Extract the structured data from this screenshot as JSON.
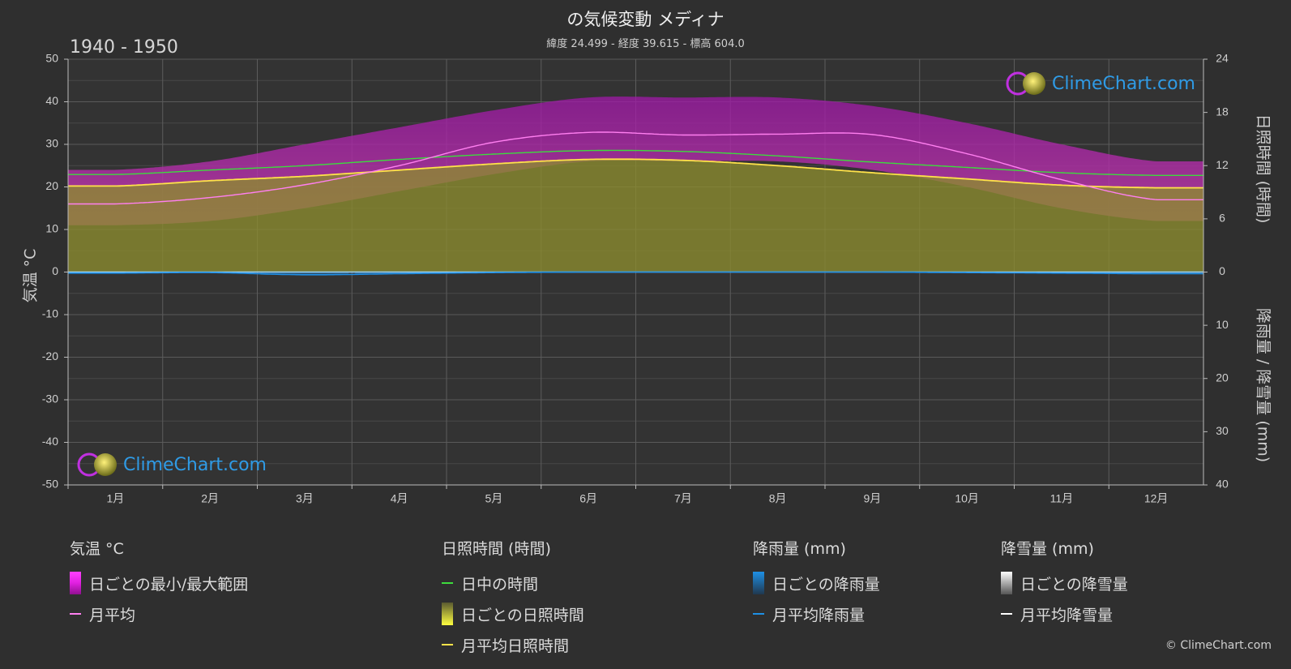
{
  "title": "の気候変動 メディナ",
  "subtitle": "緯度 24.499 - 経度 39.615 - 標高 604.0",
  "period": "1940 - 1950",
  "logo_text": "ClimeChart.com",
  "copyright": "© ClimeChart.com",
  "colors": {
    "background": "#2f2f2f",
    "temp_range": "#d020d0",
    "temp_avg": "#ff7ff0",
    "daylight": "#3ddc3d",
    "sunshine_fill": "#8c8c2e",
    "sunshine_avg": "#ffe24a",
    "rain": "#1e90e6",
    "snow": "#ffffff",
    "logo": "#2f9be6"
  },
  "legend": {
    "temp": {
      "header": "気温 °C",
      "range": "日ごとの最小/最大範囲",
      "avg": "月平均"
    },
    "sun": {
      "header": "日照時間 (時間)",
      "daylight": "日中の時間",
      "daily": "日ごとの日照時間",
      "avg": "月平均日照時間"
    },
    "rain": {
      "header": "降雨量 (mm)",
      "daily": "日ごとの降雨量",
      "avg": "月平均降雨量"
    },
    "snow": {
      "header": "降雪量 (mm)",
      "daily": "日ごとの降雪量",
      "avg": "月平均降雪量"
    }
  },
  "chart_data": {
    "type": "area",
    "categories": [
      "1月",
      "2月",
      "3月",
      "4月",
      "5月",
      "6月",
      "7月",
      "8月",
      "9月",
      "10月",
      "11月",
      "12月"
    ],
    "y_left": {
      "label": "気温 °C",
      "lim": [
        -50,
        50
      ],
      "ticks": [
        50,
        40,
        30,
        20,
        10,
        0,
        -10,
        -20,
        -30,
        -40,
        -50
      ]
    },
    "y_right_sun": {
      "label": "日照時間 (時間)",
      "lim": [
        0,
        24
      ],
      "ticks": [
        24,
        18,
        12,
        6,
        0
      ]
    },
    "y_right_precip": {
      "label": "降雨量 / 降雪量 (mm)",
      "lim": [
        0,
        40
      ],
      "ticks": [
        0,
        10,
        20,
        30,
        40
      ]
    },
    "grid": true,
    "series": [
      {
        "name": "日ごとの最小/最大範囲",
        "kind": "band",
        "min": [
          11,
          12,
          15,
          19,
          23,
          26,
          26,
          26,
          24,
          20,
          15,
          12
        ],
        "max": [
          24,
          26,
          30,
          34,
          38,
          41,
          41,
          41,
          39,
          35,
          30,
          26
        ]
      },
      {
        "name": "月平均",
        "values": [
          16,
          17.5,
          20.5,
          25,
          30.5,
          32.8,
          32.2,
          32.4,
          32.3,
          27.8,
          21.7,
          17
        ]
      },
      {
        "name": "日中の時間",
        "values": [
          11.0,
          11.5,
          12.0,
          12.7,
          13.3,
          13.7,
          13.6,
          13.1,
          12.4,
          11.8,
          11.2,
          10.9
        ]
      },
      {
        "name": "日ごとの日照時間",
        "kind": "fill",
        "values": [
          9.7,
          10.3,
          10.8,
          11.5,
          12.2,
          12.7,
          12.6,
          12.0,
          11.2,
          10.5,
          9.8,
          9.5
        ]
      },
      {
        "name": "月平均日照時間",
        "values": [
          9.7,
          10.3,
          10.8,
          11.5,
          12.2,
          12.7,
          12.6,
          12.0,
          11.2,
          10.5,
          9.8,
          9.5
        ]
      },
      {
        "name": "月平均降雨量",
        "values": [
          0.2,
          0.1,
          0.5,
          0.3,
          0.1,
          0.0,
          0.0,
          0.0,
          0.0,
          0.1,
          0.2,
          0.3
        ]
      },
      {
        "name": "月平均降雪量",
        "values": [
          0,
          0,
          0,
          0,
          0,
          0,
          0,
          0,
          0,
          0,
          0,
          0
        ]
      }
    ]
  }
}
